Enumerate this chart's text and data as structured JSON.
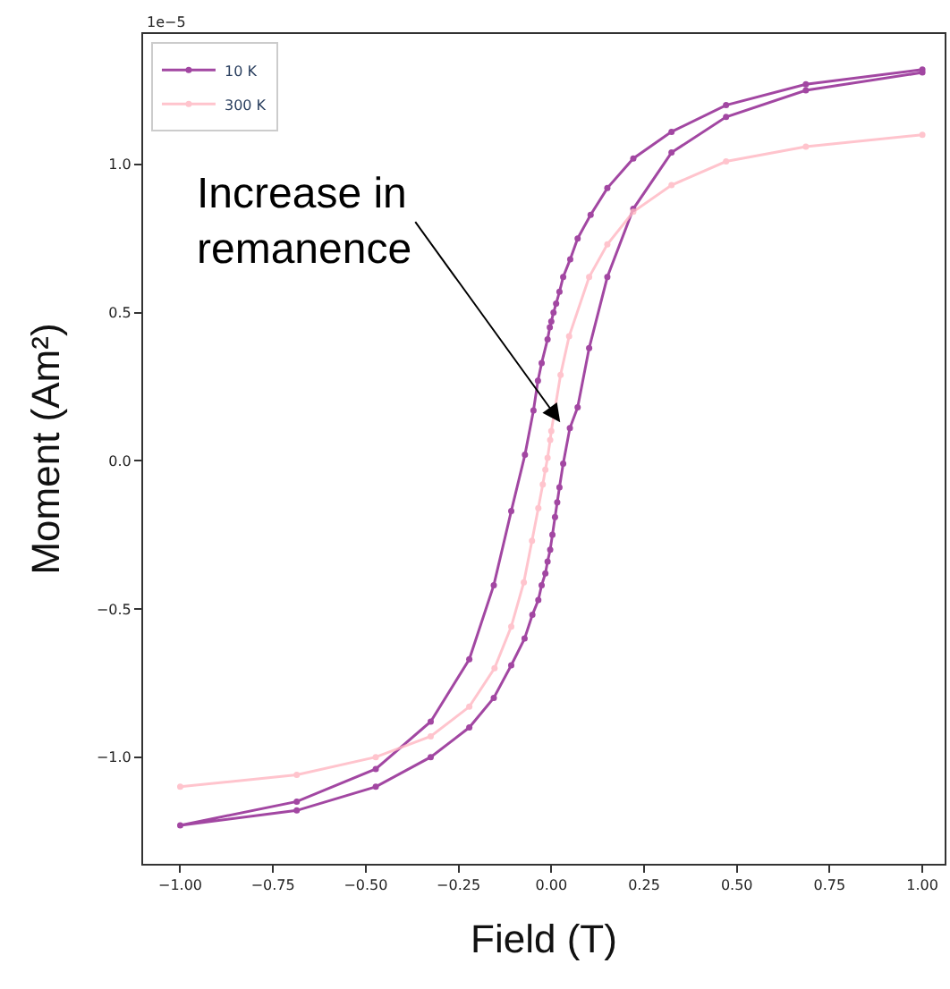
{
  "chart_data": {
    "type": "line",
    "xlabel": "Field (T)",
    "ylabel": "Moment (Am²)",
    "xlim": [
      -1.1,
      1.06
    ],
    "ylim": [
      -1.36,
      1.44
    ],
    "xticks": [
      {
        "value": -1,
        "label": "−1.00"
      },
      {
        "value": -0.75,
        "label": "−0.75"
      },
      {
        "value": -0.5,
        "label": "−0.50"
      },
      {
        "value": -0.25,
        "label": "−0.25"
      },
      {
        "value": 0,
        "label": "0.00"
      },
      {
        "value": 0.25,
        "label": "0.25"
      },
      {
        "value": 0.5,
        "label": "0.50"
      },
      {
        "value": 0.75,
        "label": "0.75"
      },
      {
        "value": 1,
        "label": "1.00"
      }
    ],
    "yticks": [
      {
        "value": -1,
        "label": "−1.0"
      },
      {
        "value": -0.5,
        "label": "−0.5"
      },
      {
        "value": 0,
        "label": "0.0"
      },
      {
        "value": 0.5,
        "label": "0.5"
      },
      {
        "value": 1,
        "label": "1.0"
      }
    ],
    "legend": "top left",
    "marker": "circle",
    "line_style": "solid",
    "annotations": [
      "1e−5",
      {
        "text": "Increase in remanence",
        "x": 0.024,
        "y": 0.13
      }
    ],
    "series": [
      {
        "name": "10 K",
        "color": "#8b1a8b",
        "x": [
          1.0,
          0.686,
          0.471,
          0.324,
          0.221,
          0.151,
          0.106,
          0.071,
          0.051,
          0.032,
          0.022,
          0.013,
          0.006,
          0.0,
          -0.004,
          -0.01,
          -0.026,
          -0.036,
          -0.048,
          -0.071,
          -0.108,
          -0.155,
          -0.221,
          -0.325,
          -0.473,
          -0.686,
          -1.0,
          -0.686,
          -0.473,
          -0.325,
          -0.221,
          -0.155,
          -0.108,
          -0.072,
          -0.051,
          -0.035,
          -0.026,
          -0.016,
          -0.01,
          -0.003,
          0.003,
          0.01,
          0.016,
          0.022,
          0.032,
          0.05,
          0.071,
          0.102,
          0.151,
          0.221,
          0.324,
          0.471,
          0.686,
          1.0
        ],
        "values": [
          1.32,
          1.27,
          1.2,
          1.11,
          1.02,
          0.92,
          0.83,
          0.75,
          0.68,
          0.62,
          0.57,
          0.53,
          0.5,
          0.47,
          0.45,
          0.41,
          0.33,
          0.27,
          0.17,
          0.02,
          -0.17,
          -0.42,
          -0.67,
          -0.88,
          -1.04,
          -1.15,
          -1.23,
          -1.18,
          -1.1,
          -1.0,
          -0.9,
          -0.8,
          -0.69,
          -0.6,
          -0.52,
          -0.47,
          -0.42,
          -0.38,
          -0.34,
          -0.3,
          -0.25,
          -0.19,
          -0.14,
          -0.09,
          -0.01,
          0.11,
          0.18,
          0.38,
          0.62,
          0.85,
          1.04,
          1.16,
          1.25,
          1.31
        ]
      },
      {
        "name": "300 K",
        "color": "#ffb6c1",
        "x": [
          -1.0,
          -0.686,
          -0.473,
          -0.325,
          -0.221,
          -0.153,
          -0.108,
          -0.074,
          -0.052,
          -0.035,
          -0.023,
          -0.016,
          -0.01,
          -0.003,
          0.0,
          0.003,
          0.025,
          0.048,
          0.102,
          0.151,
          0.221,
          0.324,
          0.471,
          0.686,
          1.0
        ],
        "values": [
          -1.1,
          -1.06,
          -1.0,
          -0.93,
          -0.83,
          -0.7,
          -0.56,
          -0.41,
          -0.27,
          -0.16,
          -0.08,
          -0.03,
          0.01,
          0.07,
          0.1,
          null,
          0.29,
          0.42,
          0.62,
          0.73,
          0.84,
          0.93,
          1.01,
          1.06,
          1.1
        ]
      }
    ]
  }
}
